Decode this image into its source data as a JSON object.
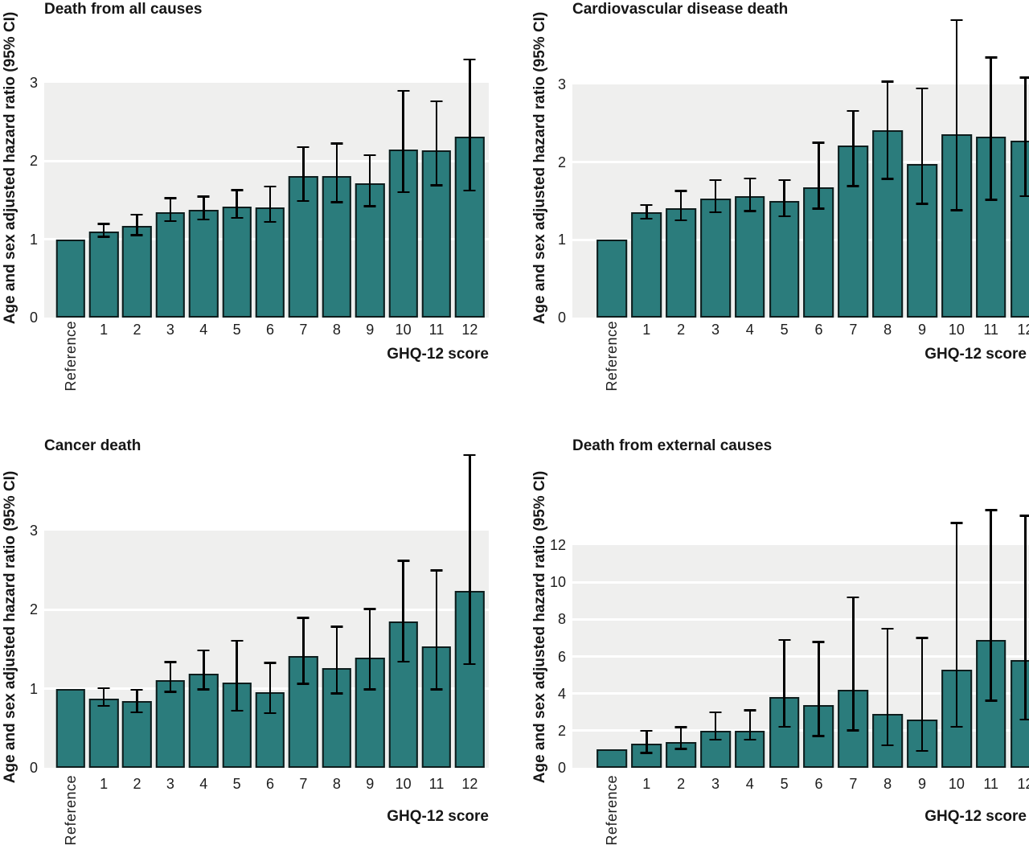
{
  "figure": {
    "ylabel": "Age and sex adjusted hazard ratio (95% CI)",
    "xlabel": "GHQ-12 score",
    "categories": [
      "Reference",
      "1",
      "2",
      "3",
      "4",
      "5",
      "6",
      "7",
      "8",
      "9",
      "10",
      "11",
      "12"
    ]
  },
  "colors": {
    "bar_fill": "#2b7c7c",
    "bar_border": "#0e1c1c",
    "error_bar": "#000000",
    "plot_shade": "#efefee",
    "gridline": "#ffffff",
    "text": "#1d1d1d",
    "background": "#ffffff"
  },
  "chart_data": [
    {
      "type": "bar",
      "title": "Death from all causes",
      "ylabel": "Age and sex adjusted hazard ratio (95% CI)",
      "xlabel": "GHQ-12 score",
      "categories": [
        "Reference",
        "1",
        "2",
        "3",
        "4",
        "5",
        "6",
        "7",
        "8",
        "9",
        "10",
        "11",
        "12"
      ],
      "values": [
        1.0,
        1.1,
        1.17,
        1.35,
        1.38,
        1.42,
        1.41,
        1.81,
        1.81,
        1.72,
        2.15,
        2.14,
        2.31
      ],
      "ci_low": [
        null,
        1.03,
        1.05,
        1.23,
        1.25,
        1.27,
        1.22,
        1.49,
        1.47,
        1.42,
        1.6,
        1.69,
        1.62
      ],
      "ci_high": [
        null,
        1.2,
        1.32,
        1.53,
        1.55,
        1.63,
        1.68,
        2.18,
        2.23,
        2.08,
        2.9,
        2.77,
        3.3
      ],
      "yticks": [
        0,
        1,
        2,
        3
      ],
      "shaded_range": [
        0,
        3
      ],
      "grid": true,
      "legend": false
    },
    {
      "type": "bar",
      "title": "Cardiovascular disease death",
      "ylabel": "Age and sex adjusted hazard ratio (95% CI)",
      "xlabel": "GHQ-12 score",
      "categories": [
        "Reference",
        "1",
        "2",
        "3",
        "4",
        "5",
        "6",
        "7",
        "8",
        "9",
        "10",
        "11",
        "12"
      ],
      "values": [
        1.0,
        1.35,
        1.41,
        1.53,
        1.56,
        1.5,
        1.68,
        2.21,
        2.41,
        1.98,
        2.36,
        2.33,
        2.28
      ],
      "ci_low": [
        null,
        1.27,
        1.25,
        1.35,
        1.37,
        1.3,
        1.4,
        1.69,
        1.78,
        1.46,
        1.38,
        1.51,
        1.56
      ],
      "ci_high": [
        null,
        1.45,
        1.63,
        1.77,
        1.79,
        1.77,
        2.25,
        2.66,
        3.04,
        2.95,
        3.83,
        3.35,
        3.09
      ],
      "yticks": [
        0,
        1,
        2,
        3
      ],
      "shaded_range": [
        0,
        3
      ],
      "grid": true,
      "legend": false
    },
    {
      "type": "bar",
      "title": "Cancer death",
      "ylabel": "Age and sex adjusted hazard ratio (95% CI)",
      "xlabel": "GHQ-12 score",
      "categories": [
        "Reference",
        "1",
        "2",
        "3",
        "4",
        "5",
        "6",
        "7",
        "8",
        "9",
        "10",
        "11",
        "12"
      ],
      "values": [
        1.0,
        0.88,
        0.84,
        1.11,
        1.19,
        1.08,
        0.96,
        1.41,
        1.26,
        1.39,
        1.85,
        1.54,
        2.24
      ],
      "ci_low": [
        null,
        0.78,
        0.7,
        0.96,
        0.99,
        0.72,
        0.69,
        1.06,
        0.94,
        0.99,
        1.34,
        0.99,
        1.31
      ],
      "ci_high": [
        null,
        1.01,
        0.99,
        1.34,
        1.49,
        1.61,
        1.33,
        1.9,
        1.79,
        2.01,
        2.62,
        2.5,
        3.96
      ],
      "yticks": [
        0,
        1,
        2,
        3
      ],
      "shaded_range": [
        0,
        3
      ],
      "grid": true,
      "legend": false
    },
    {
      "type": "bar",
      "title": "Death from external causes",
      "ylabel": "Age and sex adjusted hazard ratio (95% CI)",
      "xlabel": "GHQ-12 score",
      "categories": [
        "Reference",
        "1",
        "2",
        "3",
        "4",
        "5",
        "6",
        "7",
        "8",
        "9",
        "10",
        "11",
        "12"
      ],
      "values": [
        1.0,
        1.3,
        1.4,
        2.0,
        2.0,
        3.8,
        3.4,
        4.2,
        2.9,
        2.6,
        5.3,
        6.9,
        5.8
      ],
      "ci_low": [
        null,
        0.8,
        1.0,
        1.5,
        1.5,
        2.2,
        1.7,
        2.0,
        1.2,
        0.9,
        2.2,
        3.6,
        2.6
      ],
      "ci_high": [
        null,
        2.0,
        2.2,
        3.0,
        3.1,
        6.9,
        6.8,
        9.2,
        7.5,
        7.0,
        13.2,
        13.9,
        13.6
      ],
      "yticks": [
        0,
        2,
        4,
        6,
        8,
        10,
        12
      ],
      "shaded_range": [
        0,
        12
      ],
      "grid": true,
      "legend": false
    }
  ]
}
